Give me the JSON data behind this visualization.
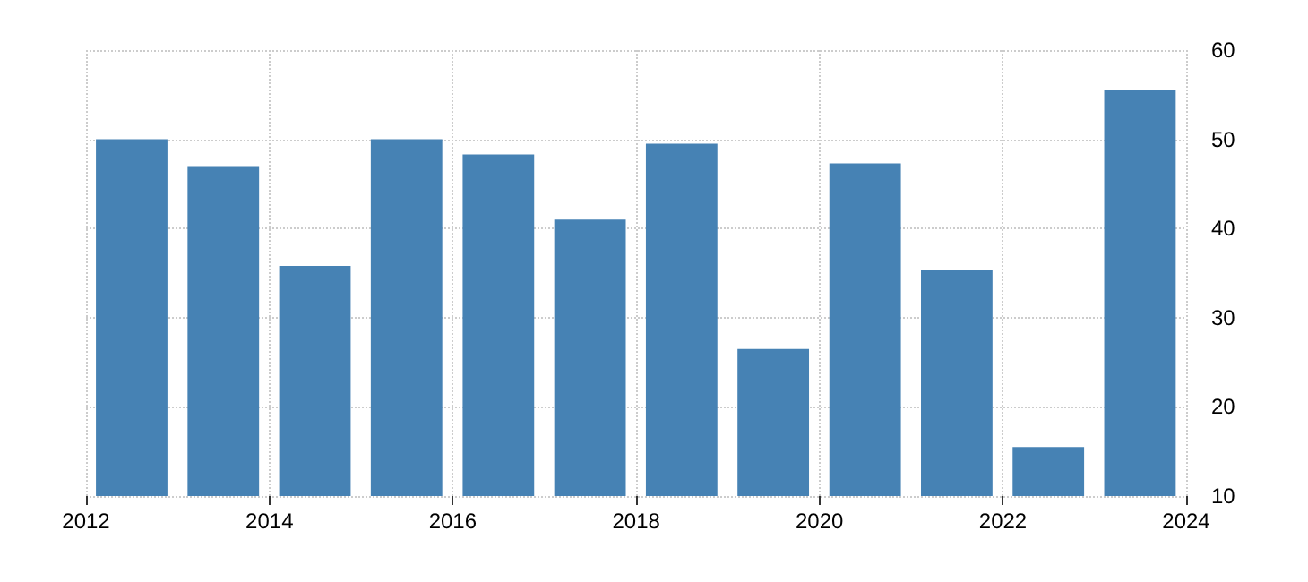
{
  "chart_data": {
    "type": "bar",
    "x": [
      "2012-07-01",
      "2013-07-01",
      "2014-07-01",
      "2015-07-01",
      "2016-07-01",
      "2017-07-01",
      "2018-07-01",
      "2019-07-01",
      "2020-07-01",
      "2021-07-01",
      "2022-07-01",
      "2023-07-01"
    ],
    "values": [
      50,
      47,
      35.8,
      50,
      48.3,
      41,
      49.5,
      26.5,
      47.3,
      35.4,
      15.5,
      55.5
    ],
    "color": "#4682b4",
    "xlim": [
      "2012",
      "2024"
    ],
    "xticks": [
      "2012",
      "2014",
      "2016",
      "2018",
      "2020",
      "2022",
      "2024"
    ],
    "ylim": [
      10,
      60
    ],
    "yticks": [
      10,
      20,
      30,
      40,
      50,
      60
    ],
    "grid": true
  }
}
